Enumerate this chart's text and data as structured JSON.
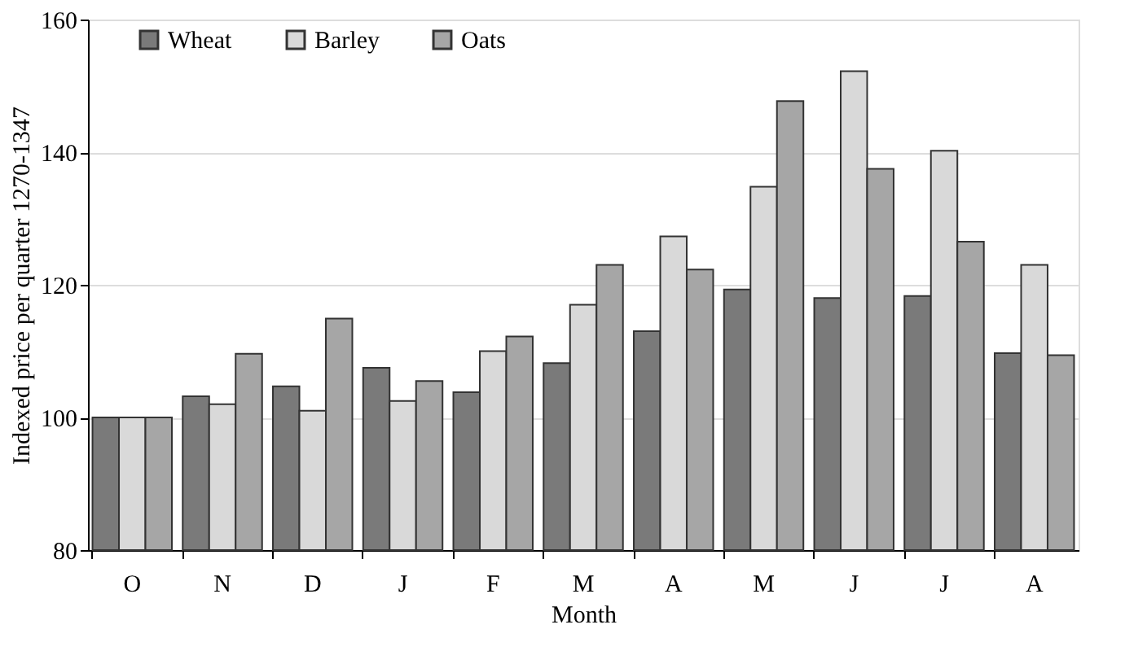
{
  "chart_data": {
    "type": "bar",
    "xlabel": "Month",
    "ylabel": "Indexed price per quarter 1270-1347",
    "categories": [
      "O",
      "N",
      "D",
      "J",
      "F",
      "M",
      "A",
      "M",
      "J",
      "J",
      "A"
    ],
    "series": [
      {
        "name": "Wheat",
        "color": "#7a7a7a",
        "values": [
          100,
          103.2,
          104.7,
          107.5,
          103.8,
          108.2,
          113,
          119.3,
          118,
          118.3,
          109.7
        ]
      },
      {
        "name": "Barley",
        "color": "#d9d9d9",
        "values": [
          100,
          102,
          101,
          102.5,
          110,
          117,
          127.3,
          134.8,
          152.2,
          140.2,
          123
        ]
      },
      {
        "name": "Oats",
        "color": "#a6a6a6",
        "values": [
          100,
          109.6,
          114.9,
          105.5,
          112.2,
          123,
          122.3,
          147.7,
          137.5,
          126.5,
          109.4
        ]
      }
    ],
    "ylim": [
      80,
      160
    ],
    "yticks": [
      80,
      100,
      120,
      140,
      160
    ],
    "grid": "y",
    "legend": "top left"
  }
}
